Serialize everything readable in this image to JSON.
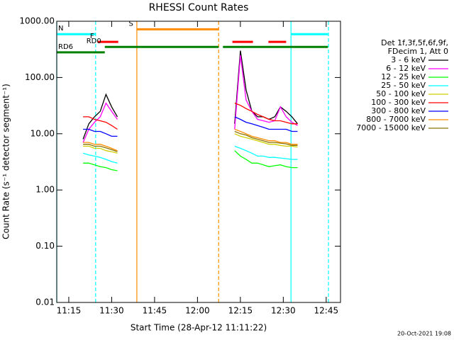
{
  "chart_data": {
    "type": "line",
    "title": "RHESSI Count Rates",
    "xlabel": "Start Time (28-Apr-12 11:11:22)",
    "ylabel": "Count Rate (s⁻¹ detector segment⁻¹)",
    "footer": "20-Oct-2021 19:08",
    "legend_header": [
      "Det 1f,3f,5f,6f,9f,",
      "FDecim 1, Att 0"
    ],
    "log_y": true,
    "xlim": [
      670.8,
      770
    ],
    "ylim": [
      0.01,
      1000
    ],
    "xticks": [
      {
        "value": 675,
        "label": "11:15"
      },
      {
        "value": 690,
        "label": "11:30"
      },
      {
        "value": 705,
        "label": "11:45"
      },
      {
        "value": 720,
        "label": "12:00"
      },
      {
        "value": 735,
        "label": "12:15"
      },
      {
        "value": 750,
        "label": "12:30"
      },
      {
        "value": 765,
        "label": "12:45"
      }
    ],
    "yticks": [
      {
        "value": 0.01,
        "label": "0.01"
      },
      {
        "value": 0.1,
        "label": "0.10"
      },
      {
        "value": 1,
        "label": "1.00"
      },
      {
        "value": 10,
        "label": "10.00"
      },
      {
        "value": 100,
        "label": "100.00"
      },
      {
        "value": 1000,
        "label": "1000.00"
      }
    ],
    "x": [
      680,
      682,
      684,
      686,
      688,
      690,
      692,
      712,
      733,
      735,
      737,
      739,
      741,
      743,
      745,
      747,
      749,
      751,
      753,
      755
    ],
    "series": [
      {
        "name": "3 - 6 keV",
        "color": "#000000",
        "values": [
          8,
          15,
          20,
          25,
          50,
          30,
          20,
          null,
          15,
          300,
          60,
          25,
          20,
          20,
          18,
          20,
          30,
          25,
          20,
          15
        ]
      },
      {
        "name": "6 - 12 keV",
        "color": "#ff00ff",
        "values": [
          7,
          12,
          16,
          20,
          35,
          25,
          18,
          null,
          12,
          250,
          40,
          25,
          18,
          17,
          16,
          17,
          30,
          20,
          16,
          14
        ]
      },
      {
        "name": "12 - 25 keV",
        "color": "#00ff00",
        "values": [
          3,
          3,
          2.8,
          2.6,
          2.5,
          2.3,
          2.2,
          null,
          5,
          4,
          3.5,
          3,
          3,
          2.8,
          2.6,
          2.7,
          2.8,
          2.6,
          2.5,
          2.5
        ]
      },
      {
        "name": "25 - 50 keV",
        "color": "#00ffff",
        "values": [
          4.5,
          4.2,
          4,
          3.8,
          3.5,
          3.2,
          3,
          null,
          6,
          5.5,
          5,
          4.5,
          4,
          4,
          3.8,
          3.8,
          3.7,
          3.6,
          3.5,
          3.5
        ]
      },
      {
        "name": "50 - 100 keV",
        "color": "#d0d000",
        "values": [
          6,
          6,
          5.5,
          5.5,
          5,
          4.8,
          4.5,
          null,
          10,
          9,
          8.5,
          8,
          7.5,
          7,
          6.5,
          6.5,
          6.2,
          6,
          6,
          5.8
        ]
      },
      {
        "name": "100 - 300 keV",
        "color": "#ff0000",
        "values": [
          20,
          20,
          18,
          17,
          16,
          14,
          12,
          null,
          35,
          32,
          28,
          25,
          22,
          20,
          18,
          17,
          17,
          16,
          15,
          15
        ]
      },
      {
        "name": "300 - 800 keV",
        "color": "#0000ff",
        "values": [
          12,
          12,
          11,
          11,
          10,
          9,
          9,
          null,
          20,
          18,
          16,
          15,
          14,
          13,
          12,
          12,
          12,
          12,
          11,
          11
        ]
      },
      {
        "name": "800 - 7000 keV",
        "color": "#ff8c00",
        "values": [
          7,
          7,
          6.5,
          6.5,
          6,
          5.5,
          5,
          null,
          12,
          11,
          10,
          9,
          8.5,
          8,
          7.5,
          7.5,
          7,
          7,
          6.5,
          6.5
        ]
      },
      {
        "name": "7000 - 15000 keV",
        "color": "#8b7500",
        "values": [
          6.5,
          6.5,
          6,
          6,
          5.6,
          5.2,
          4.8,
          null,
          11,
          10,
          9.5,
          8.5,
          8,
          7.5,
          7,
          7,
          6.8,
          6.6,
          6.2,
          6.2
        ]
      }
    ],
    "events": [
      {
        "x": 670.8,
        "color": "#00ffff",
        "dashed": false
      },
      {
        "x": 684.4,
        "color": "#00ffff",
        "dashed": true
      },
      {
        "x": 698.8,
        "color": "#ff8c00",
        "dashed": false
      },
      {
        "x": 727.4,
        "color": "#ff8c00",
        "dashed": true
      },
      {
        "x": 752.7,
        "color": "#00ffff",
        "dashed": false
      },
      {
        "x": 765.8,
        "color": "#00ffff",
        "dashed": true
      }
    ],
    "flags": [
      {
        "label": "N",
        "color": "#00ffff",
        "y": 590,
        "segments": [
          [
            670.8,
            684.4
          ],
          [
            752.7,
            765.6
          ]
        ]
      },
      {
        "label": "F",
        "color": "#ff0000",
        "y": 430,
        "segments": [
          [
            685.1,
            692.3
          ],
          [
            732.2,
            739.4
          ],
          [
            744.8,
            751
          ]
        ]
      },
      {
        "label": "S",
        "color": "#ff8c00",
        "y": 720,
        "segments": [
          [
            698.8,
            727.4
          ]
        ]
      },
      {
        "label": "RD0",
        "color": "#008000",
        "y": 350,
        "segments": [
          [
            687.6,
            727.4
          ],
          [
            728.9,
            765.6
          ]
        ]
      },
      {
        "label": "RD6",
        "color": "#008000",
        "y": 280,
        "segments": [
          [
            670.8,
            687.6
          ]
        ]
      }
    ]
  }
}
